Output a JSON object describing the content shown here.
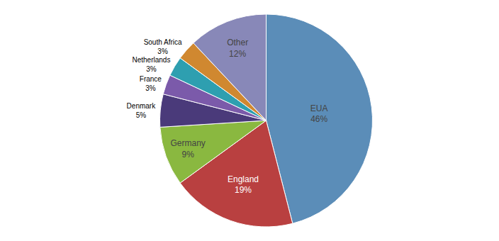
{
  "chart_data": {
    "type": "pie",
    "categories": [
      "EUA",
      "England",
      "Germany",
      "Denmark",
      "France",
      "Netherlands",
      "South Africa",
      "Other"
    ],
    "values": [
      46,
      19,
      9,
      5,
      3,
      3,
      3,
      12
    ],
    "value_labels": [
      "46%",
      "19%",
      "9%",
      "5%",
      "3%",
      "3%",
      "3%",
      "12%"
    ],
    "colors": [
      "#5b8db8",
      "#b94040",
      "#8ab840",
      "#4a3a7a",
      "#7b5aaa",
      "#2e9fb0",
      "#d08830",
      "#8888b8"
    ],
    "data_labels": true
  }
}
